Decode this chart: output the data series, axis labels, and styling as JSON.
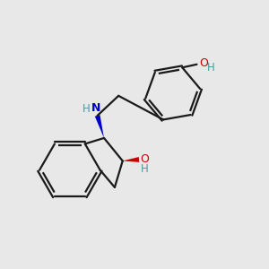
{
  "background_color": "#e8e8e8",
  "bond_color": "#1a1a1a",
  "nitrogen_color": "#0000cc",
  "oxygen_color": "#cc0000",
  "teal_color": "#4a9a9a",
  "line_width": 1.6,
  "figsize": [
    3.0,
    3.0
  ],
  "dpi": 100,
  "xlim": [
    0,
    10
  ],
  "ylim": [
    0,
    10
  ]
}
